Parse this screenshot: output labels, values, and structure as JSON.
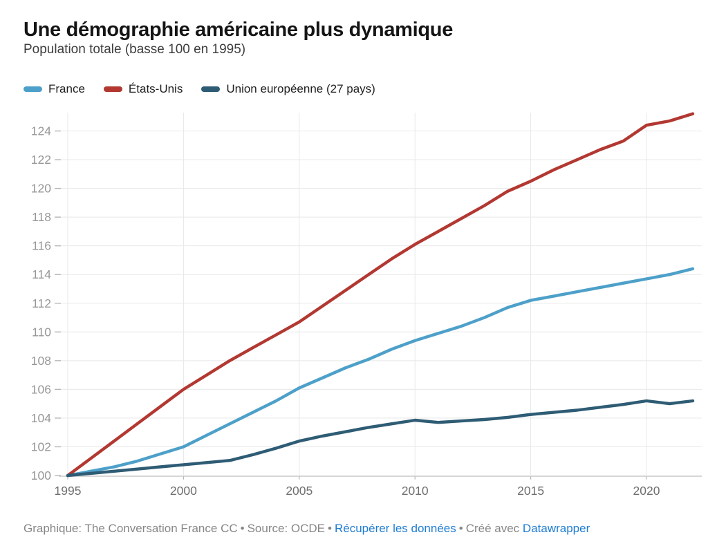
{
  "header": {
    "title": "Une démographie américaine plus dynamique",
    "subtitle": "Population totale (basse 100 en 1995)"
  },
  "footer": {
    "credit": "Graphique: The Conversation France CC",
    "separator": "•",
    "source": "Source: OCDE",
    "data_link": "Récupérer les données",
    "made_with": "Créé avec",
    "tool_link": "Datawrapper",
    "link_color": "#1e7cd2"
  },
  "chart_data": {
    "type": "line",
    "title": "Une démographie américaine plus dynamique",
    "subtitle": "Population totale (basse 100 en 1995)",
    "xlabel": "",
    "ylabel": "",
    "legend_position": "top",
    "grid": true,
    "x_ticks": [
      1995,
      2000,
      2005,
      2010,
      2015,
      2020
    ],
    "y_ticks": [
      100,
      102,
      104,
      106,
      108,
      110,
      112,
      114,
      116,
      118,
      120,
      122,
      124
    ],
    "ylim": [
      100,
      125.3
    ],
    "xlim": [
      1994.6,
      2022.4
    ],
    "x": [
      1995,
      1996,
      1997,
      1998,
      1999,
      2000,
      2001,
      2002,
      2003,
      2004,
      2005,
      2006,
      2007,
      2008,
      2009,
      2010,
      2011,
      2012,
      2013,
      2014,
      2015,
      2016,
      2017,
      2018,
      2019,
      2020,
      2021,
      2022
    ],
    "series": [
      {
        "key": "france",
        "name": "France",
        "color": "#4da0c9",
        "values": [
          100,
          100.3,
          100.6,
          101.0,
          101.5,
          102.0,
          102.8,
          103.6,
          104.4,
          105.2,
          106.1,
          106.8,
          107.5,
          108.1,
          108.8,
          109.4,
          109.9,
          110.4,
          111.0,
          111.7,
          112.2,
          112.5,
          112.8,
          113.1,
          113.4,
          113.7,
          114.0,
          114.4
        ]
      },
      {
        "key": "etats-unis",
        "name": "États-Unis",
        "color": "#b23831",
        "values": [
          100,
          101.2,
          102.4,
          103.6,
          104.8,
          106.0,
          107.0,
          108.0,
          108.9,
          109.8,
          110.7,
          111.8,
          112.9,
          114.0,
          115.1,
          116.1,
          117.0,
          117.9,
          118.8,
          119.8,
          120.5,
          121.3,
          122.0,
          122.7,
          123.3,
          124.4,
          124.7,
          125.2
        ]
      },
      {
        "key": "union-europeenne",
        "name": "Union européenne (27 pays)",
        "color": "#2e5c74",
        "values": [
          100,
          100.15,
          100.3,
          100.45,
          100.6,
          100.75,
          100.9,
          101.05,
          101.45,
          101.9,
          102.4,
          102.75,
          103.05,
          103.35,
          103.6,
          103.85,
          103.7,
          103.8,
          103.9,
          104.05,
          104.25,
          104.4,
          104.55,
          104.75,
          104.95,
          105.2,
          105.0,
          105.2
        ]
      }
    ],
    "axis_colors": {
      "grid": "#e8e8e8",
      "baseline": "#c9c9c9",
      "tick": "#b5b5b5",
      "y_label": "#979797",
      "x_label": "#6f6f6f"
    }
  }
}
